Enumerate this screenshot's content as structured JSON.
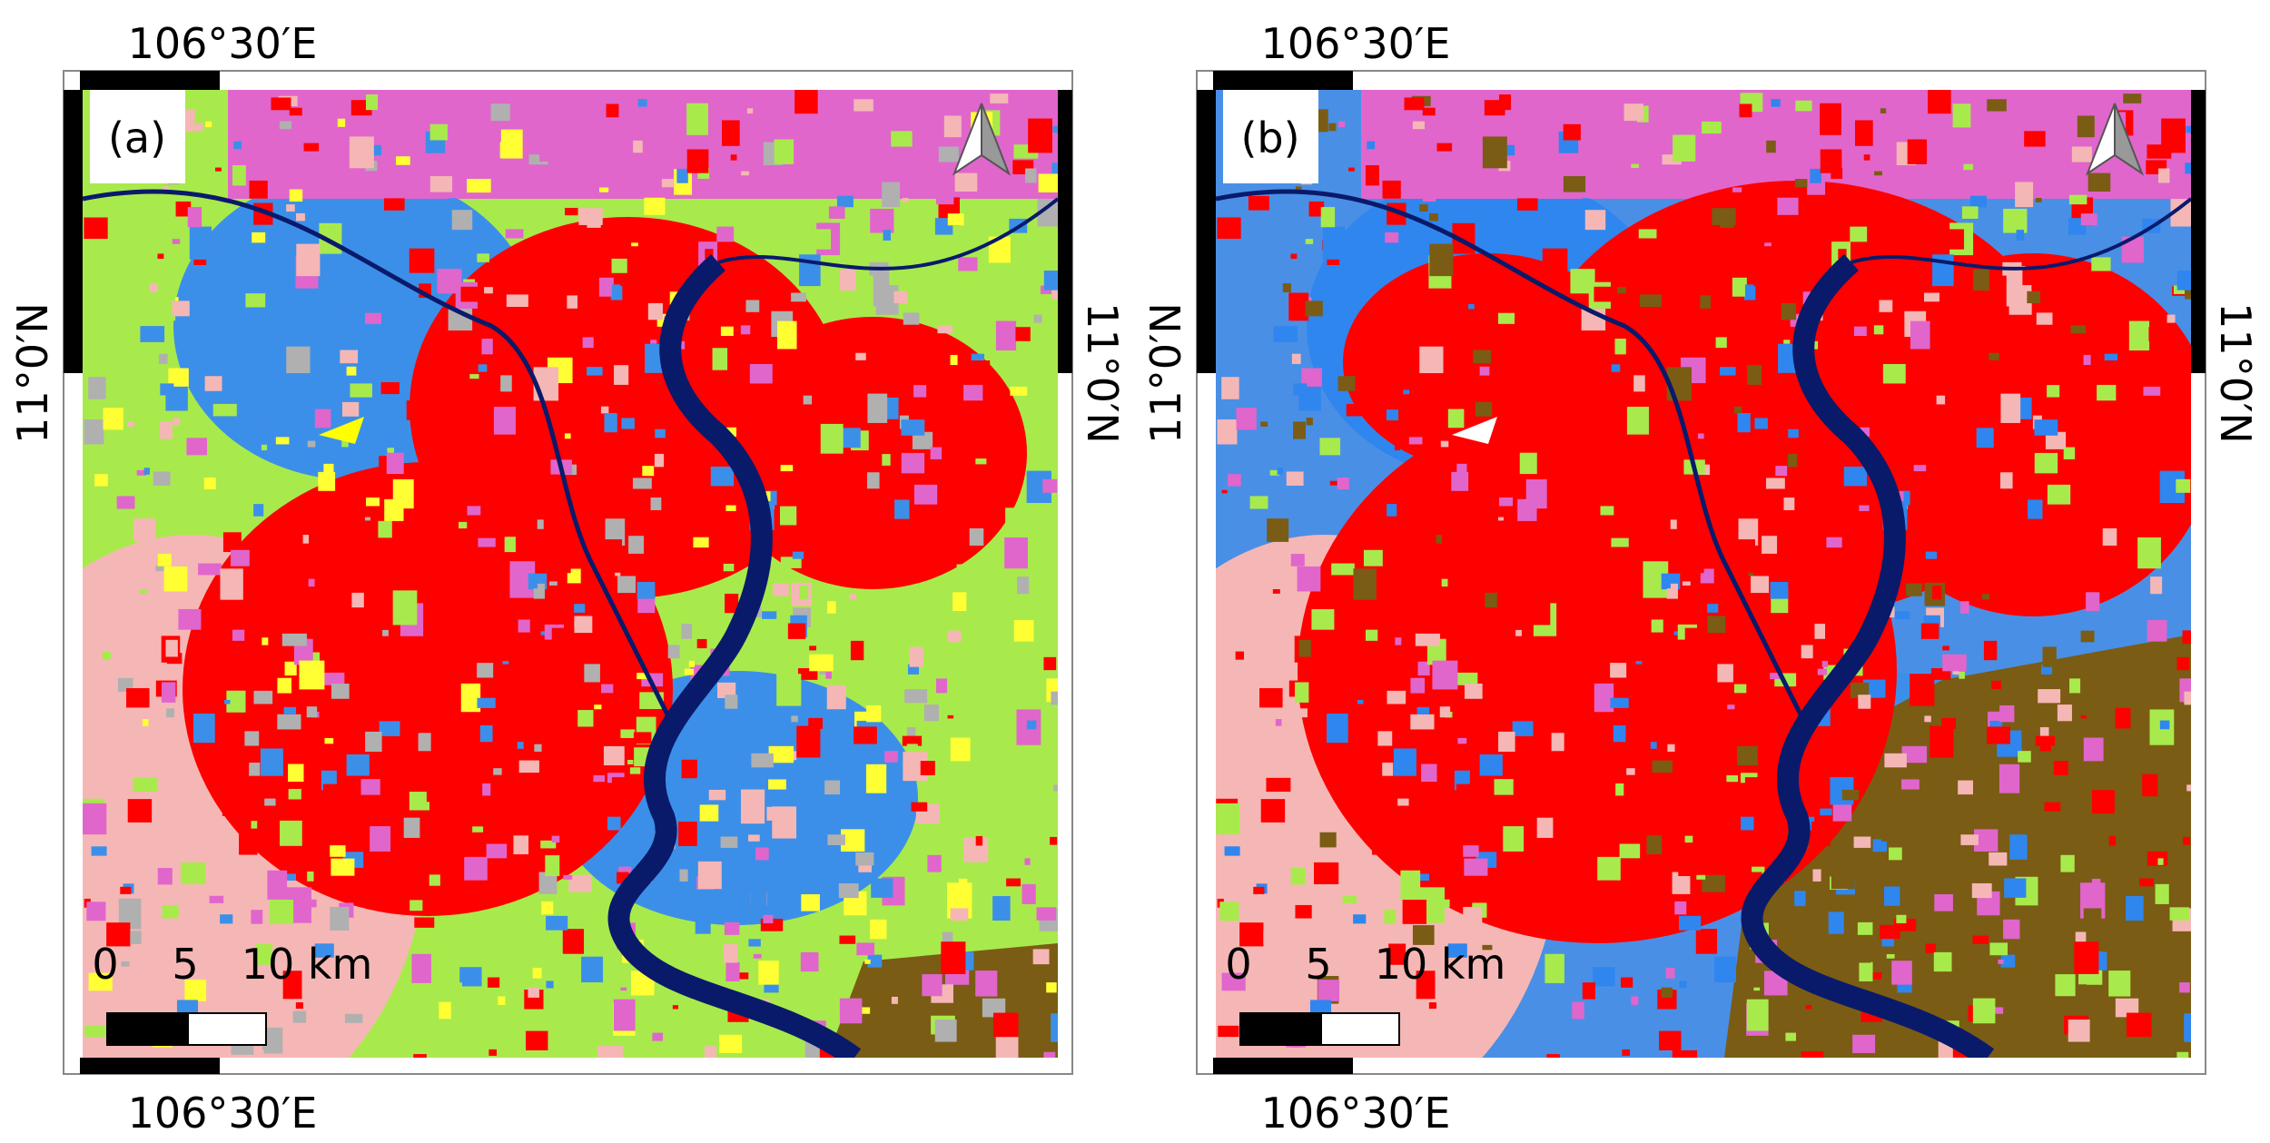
{
  "panels": [
    {
      "label": "(a)",
      "top_lon": "106°30′E",
      "bottom_lon": "106°30′E",
      "left_lat": "11°0′N",
      "right_lat": "11°0′N",
      "scale": [
        "0",
        "5",
        "10 km"
      ]
    },
    {
      "label": "(b)",
      "top_lon": "106°30′E",
      "bottom_lon": "106°30′E",
      "left_lat": "11°0′N",
      "right_lat": "11°0′N",
      "scale": [
        "0",
        "5",
        "10 km"
      ]
    }
  ]
}
